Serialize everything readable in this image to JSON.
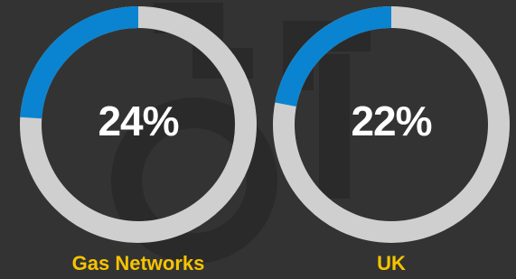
{
  "chart_data": [
    {
      "type": "donut",
      "categories": [
        "Gas Networks"
      ],
      "values": [
        24
      ],
      "value_labels": [
        "24%"
      ],
      "color": "#0a84d0",
      "track_color": "#cfcfcf"
    },
    {
      "type": "donut",
      "categories": [
        "UK"
      ],
      "values": [
        22
      ],
      "value_labels": [
        "22%"
      ],
      "color": "#0a84d0",
      "track_color": "#cfcfcf"
    }
  ]
}
